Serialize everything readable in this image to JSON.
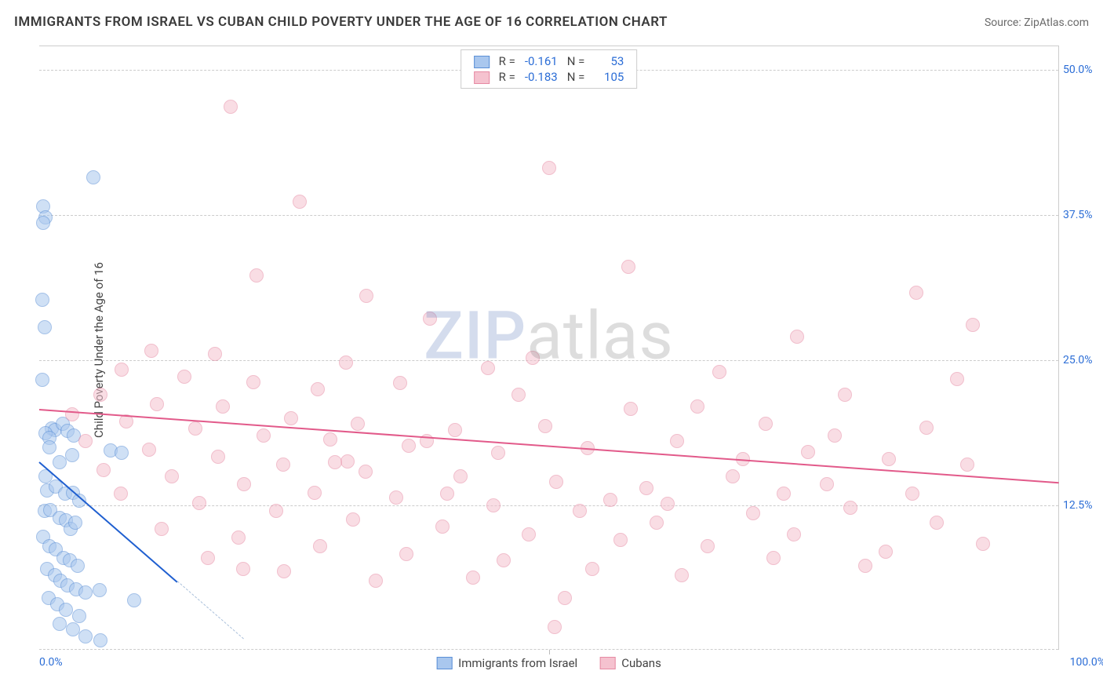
{
  "title": "IMMIGRANTS FROM ISRAEL VS CUBAN CHILD POVERTY UNDER THE AGE OF 16 CORRELATION CHART",
  "source": "Source: ZipAtlas.com",
  "watermark_part1": "ZIP",
  "watermark_part2": "atlas",
  "ylabel": "Child Poverty Under the Age of 16",
  "chart": {
    "type": "scatter",
    "xlim": [
      0,
      100
    ],
    "ylim": [
      0,
      52
    ],
    "background_color": "#ffffff",
    "grid_color": "#cccccc",
    "grid_dash": "4,4",
    "xticks": [
      0,
      100
    ],
    "xtick_labels": [
      "0.0%",
      "100.0%"
    ],
    "x_minor_tick": 50,
    "yticks": [
      12.5,
      25.0,
      37.5,
      50.0
    ],
    "ytick_labels": [
      "12.5%",
      "25.0%",
      "37.5%",
      "50.0%"
    ],
    "axis_label_color": "#2b6dd6",
    "axis_label_fontsize": 14,
    "ylabel_fontsize": 15,
    "marker_radius": 9,
    "marker_opacity": 0.55,
    "series": [
      {
        "name": "Immigrants from Israel",
        "fill": "#a9c7ee",
        "stroke": "#5a8fd6",
        "trend_color": "#1f5fd0",
        "trend_width": 2.5,
        "trend_dash_color": "#aac0db",
        "R": "-0.161",
        "N": "53",
        "trend": {
          "x1": 0,
          "y1": 16.3,
          "x2": 13.5,
          "y2": 6.0,
          "dash_to_x": 20
        },
        "points": [
          [
            0.4,
            38.2
          ],
          [
            0.6,
            37.3
          ],
          [
            0.4,
            36.8
          ],
          [
            0.3,
            30.2
          ],
          [
            0.5,
            27.8
          ],
          [
            5.3,
            40.7
          ],
          [
            0.3,
            23.3
          ],
          [
            1.2,
            19.1
          ],
          [
            1.5,
            19.0
          ],
          [
            2.3,
            19.5
          ],
          [
            0.6,
            18.7
          ],
          [
            2.8,
            18.9
          ],
          [
            1.0,
            18.3
          ],
          [
            3.4,
            18.5
          ],
          [
            1.0,
            17.5
          ],
          [
            2.0,
            16.2
          ],
          [
            3.2,
            16.8
          ],
          [
            7.0,
            17.2
          ],
          [
            8.1,
            17.0
          ],
          [
            0.6,
            15.0
          ],
          [
            0.8,
            13.8
          ],
          [
            1.6,
            14.1
          ],
          [
            2.5,
            13.5
          ],
          [
            3.3,
            13.6
          ],
          [
            3.9,
            12.9
          ],
          [
            0.5,
            12.0
          ],
          [
            1.1,
            12.1
          ],
          [
            2.0,
            11.4
          ],
          [
            2.6,
            11.2
          ],
          [
            3.1,
            10.5
          ],
          [
            3.5,
            11.0
          ],
          [
            0.4,
            9.8
          ],
          [
            1.0,
            9.0
          ],
          [
            1.6,
            8.7
          ],
          [
            2.4,
            8.0
          ],
          [
            3.0,
            7.8
          ],
          [
            3.8,
            7.3
          ],
          [
            0.8,
            7.0
          ],
          [
            1.5,
            6.5
          ],
          [
            2.1,
            6.0
          ],
          [
            2.8,
            5.6
          ],
          [
            3.6,
            5.3
          ],
          [
            4.5,
            5.0
          ],
          [
            5.9,
            5.2
          ],
          [
            0.9,
            4.5
          ],
          [
            1.8,
            4.0
          ],
          [
            2.6,
            3.5
          ],
          [
            3.9,
            3.0
          ],
          [
            9.3,
            4.3
          ],
          [
            2.0,
            2.3
          ],
          [
            3.3,
            1.8
          ],
          [
            4.5,
            1.2
          ],
          [
            6.0,
            0.9
          ]
        ]
      },
      {
        "name": "Cubans",
        "fill": "#f5c2cf",
        "stroke": "#e68aa3",
        "trend_color": "#e25a8a",
        "trend_width": 2.5,
        "R": "-0.183",
        "N": "105",
        "trend": {
          "x1": 0,
          "y1": 20.8,
          "x2": 100,
          "y2": 14.5
        },
        "points": [
          [
            18.8,
            46.8
          ],
          [
            50.0,
            41.5
          ],
          [
            25.5,
            38.6
          ],
          [
            21.3,
            32.3
          ],
          [
            57.8,
            33.0
          ],
          [
            86.0,
            30.8
          ],
          [
            32.1,
            30.5
          ],
          [
            38.3,
            28.6
          ],
          [
            91.5,
            28.0
          ],
          [
            74.3,
            27.0
          ],
          [
            11.0,
            25.8
          ],
          [
            17.2,
            25.5
          ],
          [
            30.1,
            24.8
          ],
          [
            44.0,
            24.3
          ],
          [
            48.4,
            25.2
          ],
          [
            66.7,
            24.0
          ],
          [
            8.1,
            24.2
          ],
          [
            14.2,
            23.6
          ],
          [
            21.0,
            23.1
          ],
          [
            27.3,
            22.5
          ],
          [
            35.4,
            23.0
          ],
          [
            90.0,
            23.4
          ],
          [
            6.0,
            22.0
          ],
          [
            11.5,
            21.2
          ],
          [
            18.0,
            21.0
          ],
          [
            24.7,
            20.0
          ],
          [
            31.2,
            19.5
          ],
          [
            40.8,
            19.0
          ],
          [
            49.6,
            19.3
          ],
          [
            58.0,
            20.8
          ],
          [
            71.2,
            19.5
          ],
          [
            79.0,
            22.0
          ],
          [
            30.2,
            16.3
          ],
          [
            3.2,
            20.3
          ],
          [
            8.5,
            19.7
          ],
          [
            15.3,
            19.1
          ],
          [
            22.0,
            18.5
          ],
          [
            28.5,
            18.2
          ],
          [
            36.2,
            17.6
          ],
          [
            45.0,
            17.0
          ],
          [
            53.8,
            17.4
          ],
          [
            62.5,
            18.0
          ],
          [
            75.4,
            17.1
          ],
          [
            83.3,
            16.5
          ],
          [
            91.0,
            16.0
          ],
          [
            4.5,
            18.0
          ],
          [
            10.8,
            17.3
          ],
          [
            17.5,
            16.7
          ],
          [
            23.9,
            16.0
          ],
          [
            32.0,
            15.4
          ],
          [
            41.3,
            15.0
          ],
          [
            50.7,
            14.5
          ],
          [
            59.5,
            14.0
          ],
          [
            68.0,
            15.0
          ],
          [
            77.2,
            14.3
          ],
          [
            85.6,
            13.5
          ],
          [
            6.3,
            15.5
          ],
          [
            13.0,
            15.0
          ],
          [
            20.1,
            14.3
          ],
          [
            27.0,
            13.6
          ],
          [
            35.0,
            13.2
          ],
          [
            44.5,
            12.5
          ],
          [
            53.0,
            12.0
          ],
          [
            61.6,
            12.6
          ],
          [
            70.0,
            11.8
          ],
          [
            79.5,
            12.3
          ],
          [
            88.0,
            11.0
          ],
          [
            8.0,
            13.5
          ],
          [
            15.7,
            12.7
          ],
          [
            23.2,
            12.0
          ],
          [
            30.8,
            11.3
          ],
          [
            39.5,
            10.7
          ],
          [
            48.0,
            10.0
          ],
          [
            57.0,
            9.5
          ],
          [
            65.5,
            9.0
          ],
          [
            74.0,
            10.0
          ],
          [
            83.0,
            8.5
          ],
          [
            92.5,
            9.2
          ],
          [
            12.0,
            10.5
          ],
          [
            19.5,
            9.7
          ],
          [
            27.5,
            9.0
          ],
          [
            36.0,
            8.3
          ],
          [
            45.5,
            7.8
          ],
          [
            54.2,
            7.0
          ],
          [
            63.0,
            6.5
          ],
          [
            72.0,
            8.0
          ],
          [
            81.0,
            7.3
          ],
          [
            24.0,
            6.8
          ],
          [
            20.0,
            7.0
          ],
          [
            33.0,
            6.0
          ],
          [
            42.5,
            6.3
          ],
          [
            51.5,
            4.5
          ],
          [
            60.5,
            11.0
          ],
          [
            69.0,
            16.5
          ],
          [
            78.0,
            18.5
          ],
          [
            87.0,
            19.2
          ],
          [
            16.5,
            8.0
          ],
          [
            29.0,
            16.2
          ],
          [
            38.0,
            18.0
          ],
          [
            47.0,
            22.0
          ],
          [
            56.0,
            13.0
          ],
          [
            64.5,
            21.0
          ],
          [
            73.0,
            13.5
          ],
          [
            50.5,
            2.0
          ],
          [
            40.0,
            13.5
          ]
        ]
      }
    ]
  },
  "legend_bottom": [
    {
      "label": "Immigrants from Israel",
      "fill": "#a9c7ee",
      "stroke": "#5a8fd6"
    },
    {
      "label": "Cubans",
      "fill": "#f5c2cf",
      "stroke": "#e68aa3"
    }
  ]
}
